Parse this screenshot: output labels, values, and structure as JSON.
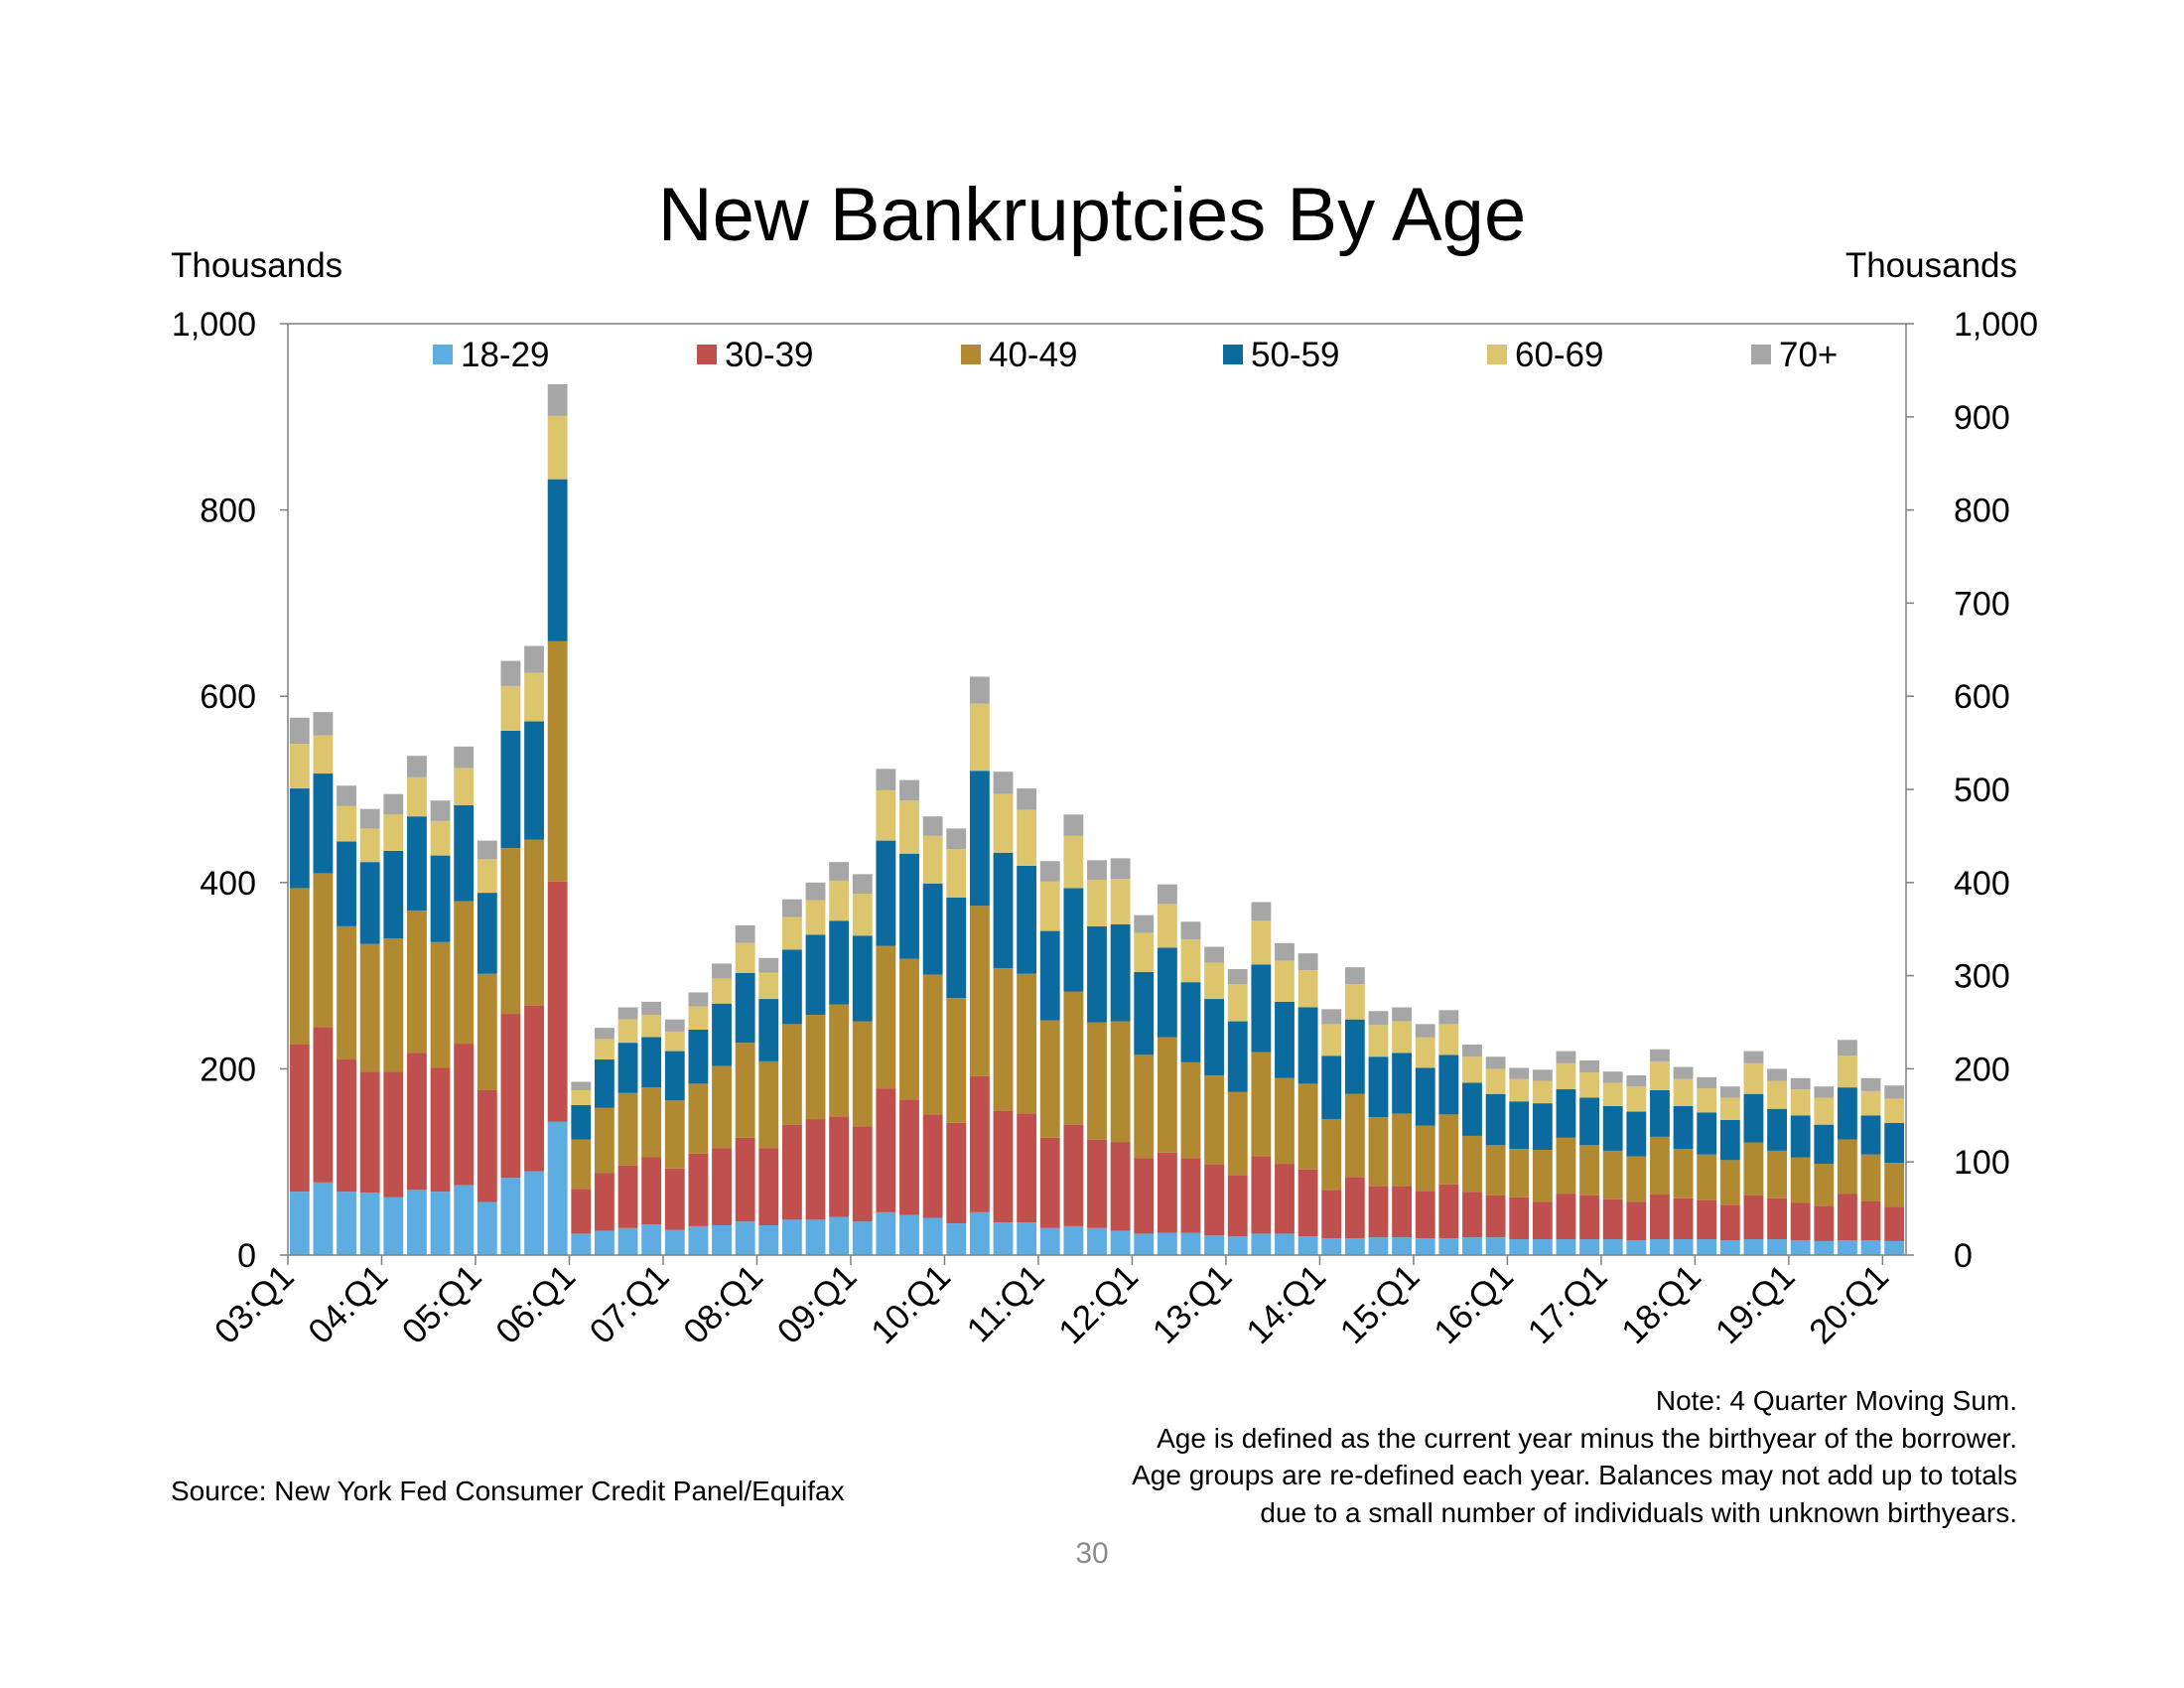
{
  "page": {
    "title": "New Bankruptcies By Age",
    "left_unit": "Thousands",
    "right_unit": "Thousands",
    "source": "Source: New York Fed Consumer Credit Panel/Equifax",
    "notes": [
      "Note: 4 Quarter Moving Sum.",
      "Age is defined as the current year minus the birthyear of the borrower.",
      "Age groups are re-defined each year. Balances may not add up to totals",
      "due to a small number of individuals with unknown birthyears."
    ],
    "page_number": "30"
  },
  "chart_data": {
    "type": "bar",
    "stacked": true,
    "title": "New Bankruptcies By Age",
    "ylabel_left": "Thousands",
    "ylabel_right": "Thousands",
    "ylim": [
      0,
      1000
    ],
    "y_ticks_left": [
      "0",
      "200",
      "400",
      "600",
      "800",
      "1,000"
    ],
    "y_ticks_right": [
      "0",
      "100",
      "200",
      "300",
      "400",
      "500",
      "600",
      "700",
      "800",
      "900",
      "1,000"
    ],
    "legend_position": "top",
    "x_tick_labels": [
      "03:Q1",
      "04:Q1",
      "05:Q1",
      "06:Q1",
      "07:Q1",
      "08:Q1",
      "09:Q1",
      "10:Q1",
      "11:Q1",
      "12:Q1",
      "13:Q1",
      "14:Q1",
      "15:Q1",
      "16:Q1",
      "17:Q1",
      "18:Q1",
      "19:Q1",
      "20:Q1"
    ],
    "categories": [
      "03:Q1",
      "03:Q2",
      "03:Q3",
      "03:Q4",
      "04:Q1",
      "04:Q2",
      "04:Q3",
      "04:Q4",
      "05:Q1",
      "05:Q2",
      "05:Q3",
      "05:Q4",
      "06:Q1",
      "06:Q2",
      "06:Q3",
      "06:Q4",
      "07:Q1",
      "07:Q2",
      "07:Q3",
      "07:Q4",
      "08:Q1",
      "08:Q2",
      "08:Q3",
      "08:Q4",
      "09:Q1",
      "09:Q2",
      "09:Q3",
      "09:Q4",
      "10:Q1",
      "10:Q2",
      "10:Q3",
      "10:Q4",
      "11:Q1",
      "11:Q2",
      "11:Q3",
      "11:Q4",
      "12:Q1",
      "12:Q2",
      "12:Q3",
      "12:Q4",
      "13:Q1",
      "13:Q2",
      "13:Q3",
      "13:Q4",
      "14:Q1",
      "14:Q2",
      "14:Q3",
      "14:Q4",
      "15:Q1",
      "15:Q2",
      "15:Q3",
      "15:Q4",
      "16:Q1",
      "16:Q2",
      "16:Q3",
      "16:Q4",
      "17:Q1",
      "17:Q2",
      "17:Q3",
      "17:Q4",
      "18:Q1",
      "18:Q2",
      "18:Q3",
      "18:Q4",
      "19:Q1",
      "19:Q2",
      "19:Q3",
      "19:Q4",
      "20:Q1"
    ],
    "series": [
      {
        "name": "18-29",
        "color": "#5DADE2",
        "values": [
          68,
          78,
          68,
          67,
          62,
          70,
          68,
          75,
          57,
          83,
          90,
          143,
          23,
          26,
          29,
          33,
          27,
          31,
          32,
          36,
          32,
          38,
          38,
          41,
          36,
          46,
          43,
          40,
          34,
          46,
          35,
          35,
          29,
          31,
          29,
          26,
          23,
          24,
          24,
          21,
          20,
          23,
          23,
          20,
          18,
          18,
          19,
          19,
          18,
          18,
          19,
          19,
          17,
          17,
          17,
          17,
          17,
          16,
          17,
          17,
          17,
          16,
          17,
          17,
          16,
          15,
          16,
          16,
          15
        ]
      },
      {
        "name": "30-39",
        "color": "#C0504D",
        "values": [
          158,
          167,
          142,
          130,
          135,
          147,
          133,
          152,
          120,
          176,
          178,
          258,
          48,
          62,
          67,
          72,
          66,
          78,
          83,
          90,
          83,
          102,
          108,
          108,
          102,
          133,
          124,
          111,
          108,
          146,
          120,
          117,
          97,
          109,
          95,
          95,
          81,
          86,
          80,
          76,
          66,
          83,
          75,
          72,
          52,
          66,
          55,
          55,
          51,
          58,
          49,
          45,
          45,
          40,
          49,
          47,
          43,
          41,
          48,
          44,
          42,
          38,
          47,
          44,
          40,
          38,
          50,
          42,
          37
        ]
      },
      {
        "name": "40-49",
        "color": "#B08930",
        "values": [
          168,
          165,
          143,
          137,
          143,
          153,
          135,
          153,
          125,
          178,
          178,
          258,
          53,
          70,
          78,
          75,
          73,
          75,
          88,
          102,
          93,
          108,
          112,
          120,
          113,
          153,
          151,
          150,
          134,
          183,
          153,
          150,
          126,
          143,
          126,
          130,
          111,
          124,
          103,
          96,
          89,
          112,
          92,
          92,
          76,
          89,
          74,
          78,
          70,
          75,
          60,
          54,
          52,
          56,
          60,
          54,
          52,
          49,
          62,
          53,
          49,
          48,
          57,
          51,
          49,
          45,
          58,
          50,
          47
        ]
      },
      {
        "name": "50-59",
        "color": "#0B6B9E",
        "values": [
          107,
          107,
          91,
          88,
          94,
          101,
          93,
          103,
          87,
          126,
          127,
          174,
          37,
          52,
          54,
          54,
          53,
          58,
          67,
          75,
          67,
          80,
          86,
          90,
          92,
          113,
          113,
          98,
          108,
          145,
          124,
          116,
          96,
          111,
          103,
          104,
          89,
          96,
          86,
          82,
          76,
          94,
          82,
          82,
          68,
          80,
          65,
          65,
          62,
          64,
          57,
          55,
          51,
          50,
          52,
          51,
          48,
          48,
          50,
          46,
          45,
          43,
          52,
          45,
          45,
          42,
          56,
          42,
          43
        ]
      },
      {
        "name": "60-69",
        "color": "#DCC56D",
        "values": [
          48,
          41,
          38,
          36,
          39,
          42,
          37,
          40,
          36,
          48,
          52,
          68,
          16,
          22,
          25,
          24,
          21,
          25,
          27,
          32,
          28,
          35,
          37,
          43,
          45,
          54,
          57,
          51,
          52,
          72,
          63,
          60,
          53,
          56,
          50,
          49,
          42,
          47,
          46,
          39,
          40,
          47,
          44,
          40,
          34,
          38,
          34,
          34,
          33,
          33,
          28,
          27,
          24,
          24,
          28,
          27,
          25,
          27,
          31,
          29,
          26,
          24,
          33,
          30,
          28,
          29,
          34,
          26,
          26
        ]
      },
      {
        "name": "70+",
        "color": "#A6A6A6",
        "values": [
          28,
          25,
          22,
          21,
          22,
          23,
          22,
          23,
          20,
          27,
          29,
          34,
          9,
          12,
          13,
          14,
          13,
          15,
          16,
          19,
          16,
          19,
          19,
          20,
          21,
          23,
          22,
          21,
          22,
          29,
          24,
          23,
          22,
          23,
          21,
          22,
          19,
          21,
          19,
          17,
          16,
          20,
          19,
          18,
          16,
          18,
          15,
          15,
          14,
          15,
          13,
          13,
          12,
          12,
          13,
          13,
          12,
          12,
          13,
          13,
          12,
          12,
          13,
          13,
          12,
          12,
          17,
          14,
          14
        ]
      }
    ]
  }
}
